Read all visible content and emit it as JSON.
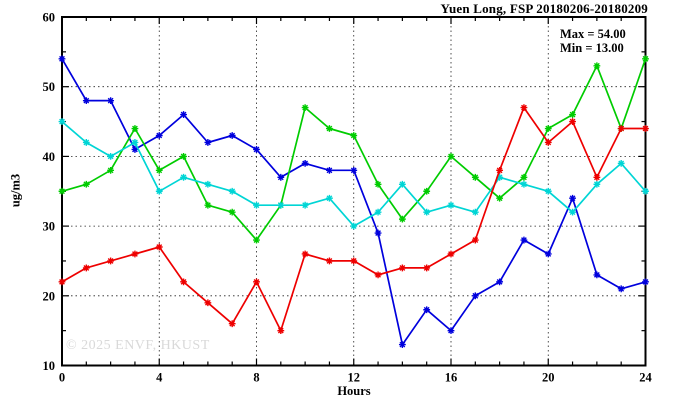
{
  "title": "Yuen Long, FSP 20180206-20180209",
  "annotation": {
    "max_label": "Max = 54.00",
    "min_label": "Min = 13.00"
  },
  "watermark": "© 2025 ENVF, HKUST",
  "chart_data": {
    "type": "line",
    "title": "Yuen Long, FSP 20180206-20180209",
    "xlabel": "Hours",
    "ylabel": "ug/m3",
    "xlim": [
      0,
      24
    ],
    "ylim": [
      10,
      60
    ],
    "x_major_ticks": [
      0,
      4,
      8,
      12,
      16,
      20,
      24
    ],
    "x_minor_step": 1,
    "y_major_ticks": [
      10,
      20,
      30,
      40,
      50,
      60
    ],
    "y_minor_step": 5,
    "grid": true,
    "legend": "none",
    "marker": "asterisk",
    "stats": {
      "max": 54.0,
      "min": 13.0
    },
    "x": [
      0,
      1,
      2,
      3,
      4,
      5,
      6,
      7,
      8,
      9,
      10,
      11,
      12,
      13,
      14,
      15,
      16,
      17,
      18,
      19,
      20,
      21,
      22,
      23,
      24
    ],
    "series": [
      {
        "name": "blue",
        "color": "#0000dd",
        "values": [
          54,
          48,
          48,
          41,
          43,
          46,
          42,
          43,
          41,
          37,
          39,
          38,
          38,
          29,
          13,
          18,
          15,
          20,
          22,
          28,
          26,
          34,
          23,
          21,
          22
        ]
      },
      {
        "name": "green",
        "color": "#00cc00",
        "values": [
          35,
          36,
          38,
          44,
          38,
          40,
          33,
          32,
          28,
          33,
          47,
          44,
          43,
          36,
          31,
          35,
          40,
          37,
          34,
          37,
          44,
          46,
          53,
          44,
          54
        ]
      },
      {
        "name": "cyan",
        "color": "#00d5d5",
        "values": [
          45,
          42,
          40,
          42,
          35,
          37,
          36,
          35,
          33,
          33,
          33,
          34,
          30,
          32,
          36,
          32,
          33,
          32,
          37,
          36,
          35,
          32,
          36,
          39,
          35
        ]
      },
      {
        "name": "red",
        "color": "#ee0000",
        "values": [
          22,
          24,
          25,
          26,
          27,
          22,
          19,
          16,
          22,
          15,
          26,
          25,
          25,
          23,
          24,
          24,
          26,
          28,
          38,
          47,
          42,
          45,
          37,
          44,
          44
        ]
      }
    ]
  }
}
